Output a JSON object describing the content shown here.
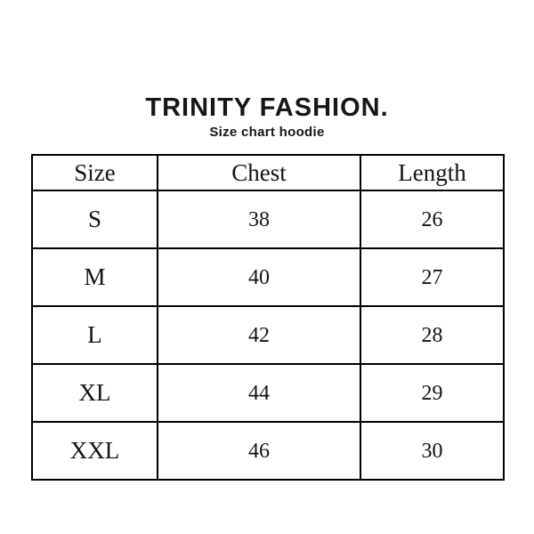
{
  "colors": {
    "background": "#ffffff",
    "text": "#1a1a1a",
    "table_border": "#000000"
  },
  "header": {
    "title": "TRINITY FASHION.",
    "subtitle": "Size chart hoodie"
  },
  "chart_data": {
    "type": "table",
    "title": "TRINITY FASHION.",
    "subtitle": "Size chart hoodie",
    "columns": [
      "Size",
      "Chest",
      "Length"
    ],
    "rows": [
      [
        "S",
        "38",
        "26"
      ],
      [
        "M",
        "40",
        "27"
      ],
      [
        "L",
        "42",
        "28"
      ],
      [
        "XL",
        "44",
        "29"
      ],
      [
        "XXL",
        "46",
        "30"
      ]
    ]
  }
}
